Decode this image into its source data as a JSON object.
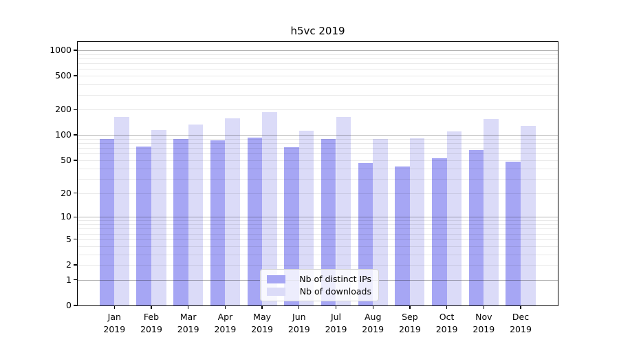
{
  "title": "h5vc 2019",
  "colors": {
    "ips_bar": "#a6a6f4",
    "downloads_bar": "#dbdbf8",
    "axis": "#000000",
    "grid_major": "#b3b3b3",
    "grid_minor": "#e9e9e9",
    "legend_border": "#d5d5d5"
  },
  "legend": {
    "items": [
      {
        "label": "Nb of distinct IPs",
        "series": "ips"
      },
      {
        "label": "Nb of downloads",
        "series": "downloads"
      }
    ]
  },
  "x_axis": {
    "year_line": "2019"
  },
  "chart_data": {
    "type": "bar",
    "title": "h5vc 2019",
    "categories": [
      "Jan 2019",
      "Feb 2019",
      "Mar 2019",
      "Apr 2019",
      "May 2019",
      "Jun 2019",
      "Jul 2019",
      "Aug 2019",
      "Sep 2019",
      "Oct 2019",
      "Nov 2019",
      "Dec 2019"
    ],
    "series": [
      {
        "name": "Nb of distinct IPs",
        "values": [
          89,
          73,
          89,
          87,
          93,
          72,
          89,
          46,
          42,
          53,
          66,
          48
        ]
      },
      {
        "name": "Nb of downloads",
        "values": [
          164,
          115,
          133,
          157,
          185,
          112,
          164,
          90,
          92,
          110,
          155,
          128
        ]
      }
    ],
    "xlabel": "",
    "ylabel": "",
    "yscale": "log1p",
    "yticks": [
      0,
      1,
      2,
      5,
      10,
      20,
      50,
      100,
      200,
      500,
      1000
    ],
    "ylim": [
      0,
      1250
    ],
    "grid": true,
    "grid_minor": true,
    "legend_position": "lower center"
  }
}
